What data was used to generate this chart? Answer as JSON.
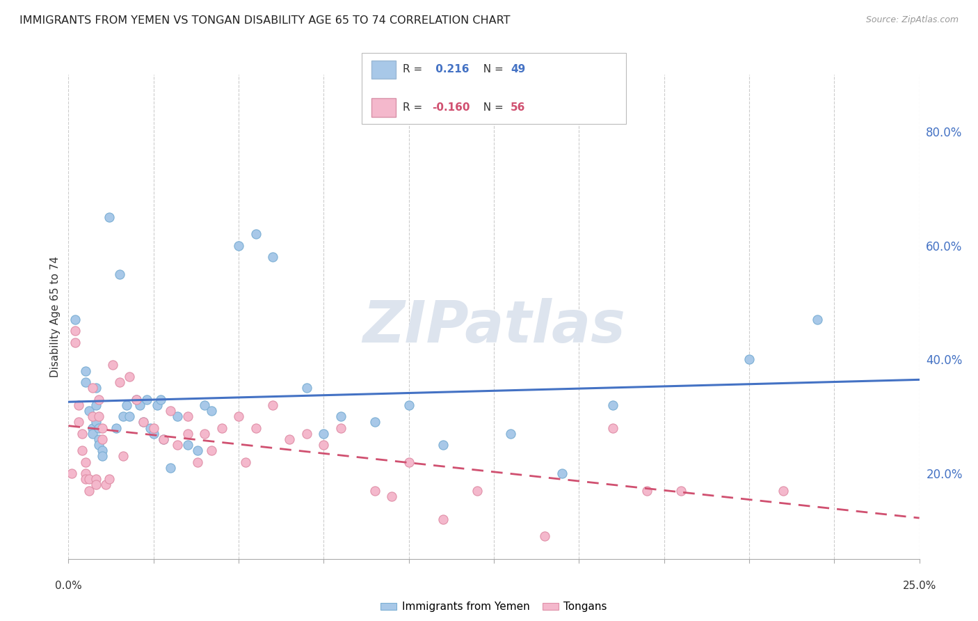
{
  "title": "IMMIGRANTS FROM YEMEN VS TONGAN DISABILITY AGE 65 TO 74 CORRELATION CHART",
  "source": "Source: ZipAtlas.com",
  "ylabel": "Disability Age 65 to 74",
  "legend_label1": "Immigrants from Yemen",
  "legend_label2": "Tongans",
  "watermark": "ZIPatlas",
  "color_yemen": "#a8c8e8",
  "color_tongan": "#f4b8cc",
  "color_line_yemen": "#4472c4",
  "color_line_tongan": "#d05070",
  "xlim": [
    0.0,
    25.0
  ],
  "ylim": [
    5.0,
    90.0
  ],
  "right_yticks": [
    20.0,
    40.0,
    60.0,
    80.0
  ],
  "yemen_x": [
    0.2,
    0.5,
    0.5,
    0.6,
    0.7,
    0.7,
    0.8,
    0.8,
    0.8,
    0.9,
    0.9,
    0.9,
    1.0,
    1.0,
    1.2,
    1.4,
    1.5,
    1.6,
    1.7,
    1.8,
    2.0,
    2.1,
    2.2,
    2.3,
    2.4,
    2.5,
    2.6,
    2.7,
    2.8,
    3.0,
    3.2,
    3.5,
    3.8,
    4.0,
    4.2,
    5.0,
    5.5,
    6.0,
    7.0,
    7.5,
    8.0,
    9.0,
    10.0,
    11.0,
    13.0,
    14.5,
    16.0,
    20.0,
    22.0
  ],
  "yemen_y": [
    47,
    38,
    36,
    31,
    28,
    27,
    35,
    32,
    29,
    28,
    26,
    25,
    24,
    23,
    65,
    28,
    55,
    30,
    32,
    30,
    33,
    32,
    29,
    33,
    28,
    27,
    32,
    33,
    26,
    21,
    30,
    25,
    24,
    32,
    31,
    60,
    62,
    58,
    35,
    27,
    30,
    29,
    32,
    25,
    27,
    20,
    32,
    40,
    47
  ],
  "tongan_x": [
    0.1,
    0.2,
    0.2,
    0.3,
    0.3,
    0.4,
    0.4,
    0.5,
    0.5,
    0.5,
    0.6,
    0.6,
    0.7,
    0.7,
    0.8,
    0.8,
    0.9,
    0.9,
    1.0,
    1.0,
    1.1,
    1.2,
    1.3,
    1.5,
    1.6,
    1.8,
    2.0,
    2.2,
    2.5,
    2.8,
    3.0,
    3.2,
    3.5,
    3.5,
    3.8,
    4.0,
    4.2,
    4.5,
    5.0,
    5.2,
    5.5,
    6.0,
    6.5,
    7.0,
    7.5,
    8.0,
    9.0,
    9.5,
    10.0,
    11.0,
    12.0,
    14.0,
    16.0,
    17.0,
    18.0,
    21.0
  ],
  "tongan_y": [
    20,
    45,
    43,
    32,
    29,
    27,
    24,
    22,
    20,
    19,
    19,
    17,
    35,
    30,
    19,
    18,
    33,
    30,
    28,
    26,
    18,
    19,
    39,
    36,
    23,
    37,
    33,
    29,
    28,
    26,
    31,
    25,
    30,
    27,
    22,
    27,
    24,
    28,
    30,
    22,
    28,
    32,
    26,
    27,
    25,
    28,
    17,
    16,
    22,
    12,
    17,
    9,
    28,
    17,
    17,
    17
  ]
}
